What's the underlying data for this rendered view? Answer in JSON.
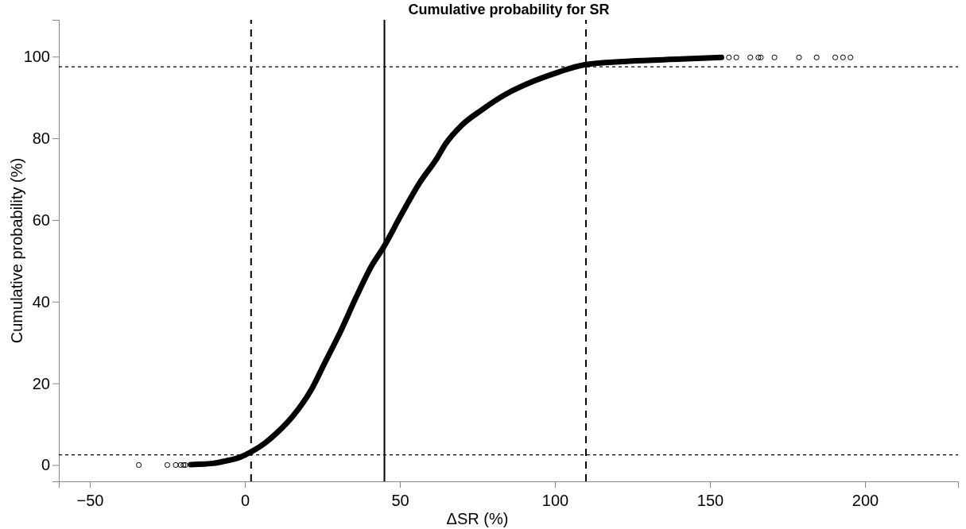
{
  "chart_data": {
    "type": "scatter",
    "title": "Cumulative probability for SR",
    "xlabel": "ΔSR (%)",
    "ylabel": "Cumulative probability (%)",
    "xlim": [
      -60,
      230
    ],
    "ylim": [
      -4,
      109
    ],
    "xticks": [
      -50,
      0,
      50,
      100,
      150,
      200
    ],
    "yticks": [
      0,
      20,
      40,
      60,
      80,
      100
    ],
    "grid": false,
    "series": [
      {
        "type": "line",
        "color": "#000000",
        "marker": "none",
        "line_style": "solid",
        "x": [
          -17.5,
          -10.3,
          -6.2,
          -1.6,
          2.2,
          6.5,
          10.2,
          15.5,
          21.4,
          25.7,
          30.8,
          35.9,
          40.9,
          44.7,
          50.3,
          56.2,
          62.1,
          64.7,
          69.8,
          76.5,
          84.2,
          93.5,
          101.1,
          109.6,
          124.0,
          141.0,
          153.7
        ],
        "values": [
          0.1,
          0.4,
          1.0,
          1.9,
          3.3,
          5.4,
          7.8,
          12.0,
          18.4,
          24.9,
          32.6,
          41.1,
          48.8,
          53.3,
          61.1,
          68.9,
          75.3,
          78.6,
          83.1,
          87.0,
          90.8,
          94.1,
          96.2,
          98.0,
          98.9,
          99.4,
          99.8
        ]
      },
      {
        "type": "scatter",
        "color": "#000000",
        "marker": "circle",
        "x": [
          -34.2,
          -25.0,
          -22.3,
          -20.7,
          -19.8,
          -19.2,
          156.1,
          158.5,
          163.0,
          165.6,
          166.4,
          170.8,
          178.7,
          184.4,
          190.4,
          192.9,
          195.3
        ],
        "values": [
          0,
          0,
          0,
          0,
          0,
          0,
          99.8,
          99.8,
          99.8,
          99.8,
          99.8,
          99.8,
          99.8,
          99.8,
          99.8,
          99.8,
          99.8
        ]
      }
    ],
    "ref_lines": [
      {
        "axis": "x",
        "value": 2,
        "color": "#000000",
        "line_style": "dashed"
      },
      {
        "axis": "x",
        "value": 45,
        "color": "#000000",
        "line_style": "solid"
      },
      {
        "axis": "x",
        "value": 110,
        "color": "#000000",
        "line_style": "dashed"
      },
      {
        "axis": "y",
        "value": 2.5,
        "color": "#000000",
        "line_style": "dotted"
      },
      {
        "axis": "y",
        "value": 97.5,
        "color": "#000000",
        "line_style": "dotted"
      }
    ]
  }
}
